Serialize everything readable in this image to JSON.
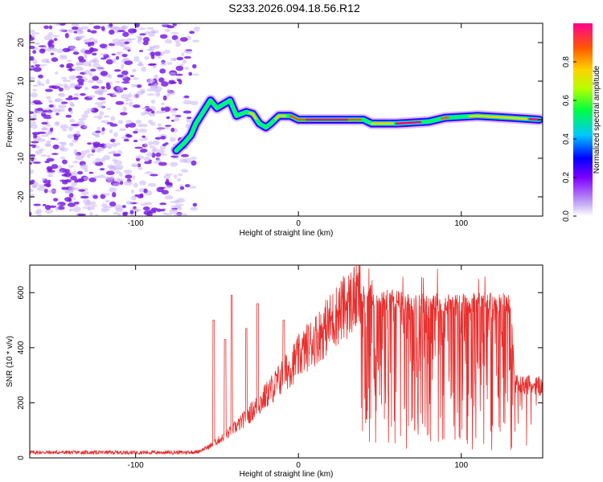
{
  "title": "S233.2026.094.18.56.R12",
  "colors": {
    "snr_line": "#e8302e",
    "frame": "#000000",
    "noise_dark": "#7a1fe0",
    "noise_light": "#cbb3f5",
    "colormap": [
      "#d7c6f7",
      "#7f00ff",
      "#0000ff",
      "#00c8ff",
      "#00ff64",
      "#b4ff00",
      "#ffd200",
      "#ff5a00",
      "#ff0080"
    ]
  },
  "chart_data": [
    {
      "type": "heatmap",
      "name": "spectrogram",
      "title": "S233.2026.094.18.56.R12",
      "xlabel": "Height of straight line (km)",
      "ylabel": "Frequency (Hz)",
      "xlim": [
        -165,
        150
      ],
      "ylim": [
        -25,
        25
      ],
      "xticks": [
        -100,
        0,
        100
      ],
      "yticks": [
        -20,
        -10,
        0,
        10,
        20
      ],
      "noise_region_x": [
        -165,
        -68
      ],
      "ridge": [
        {
          "x": -75,
          "y": -8
        },
        {
          "x": -70,
          "y": -6
        },
        {
          "x": -66,
          "y": -4
        },
        {
          "x": -63,
          "y": -1
        },
        {
          "x": -60,
          "y": 1
        },
        {
          "x": -57,
          "y": 3
        },
        {
          "x": -54,
          "y": 5
        },
        {
          "x": -50,
          "y": 3
        },
        {
          "x": -46,
          "y": 4
        },
        {
          "x": -42,
          "y": 5
        },
        {
          "x": -38,
          "y": 1
        },
        {
          "x": -32,
          "y": 2
        },
        {
          "x": -28,
          "y": 1.5
        },
        {
          "x": -24,
          "y": -1
        },
        {
          "x": -20,
          "y": -2
        },
        {
          "x": -17,
          "y": -1
        },
        {
          "x": -12,
          "y": 1
        },
        {
          "x": -5,
          "y": 1
        },
        {
          "x": 0,
          "y": 0
        },
        {
          "x": 20,
          "y": 0
        },
        {
          "x": 40,
          "y": 0
        },
        {
          "x": 45,
          "y": -1
        },
        {
          "x": 60,
          "y": -1
        },
        {
          "x": 80,
          "y": -0.5
        },
        {
          "x": 90,
          "y": 0.5
        },
        {
          "x": 110,
          "y": 1
        },
        {
          "x": 130,
          "y": 0.5
        },
        {
          "x": 148,
          "y": 0
        }
      ],
      "colorbar": {
        "label": "Normalized spectral amplitude",
        "range": [
          0,
          1
        ],
        "ticks": [
          "0.0",
          "0.2",
          "0.4",
          "0.6",
          "0.8"
        ]
      }
    },
    {
      "type": "line",
      "name": "snr",
      "xlabel": "Height of straight line (km)",
      "ylabel": "SNR (10 * v/v)",
      "xlim": [
        -165,
        150
      ],
      "ylim": [
        0,
        700
      ],
      "xticks": [
        -100,
        0,
        100
      ],
      "yticks": [
        0,
        200,
        400,
        600
      ],
      "series": [
        {
          "envelope_x": [
            -165,
            -70,
            -62,
            -55,
            -45,
            -35,
            -25,
            -15,
            -5,
            5,
            15,
            25,
            35,
            40,
            50,
            70,
            90,
            110,
            130,
            133,
            150
          ],
          "envelope_y": [
            20,
            20,
            22,
            40,
            80,
            130,
            190,
            260,
            330,
            400,
            460,
            530,
            580,
            600,
            580,
            560,
            560,
            560,
            560,
            270,
            260
          ],
          "spikes": [
            {
              "x": -52,
              "y": 500
            },
            {
              "x": -45,
              "y": 430
            },
            {
              "x": -41,
              "y": 590
            },
            {
              "x": -32,
              "y": 470
            },
            {
              "x": -25,
              "y": 560
            },
            {
              "x": -9,
              "y": 500
            }
          ]
        }
      ]
    }
  ]
}
